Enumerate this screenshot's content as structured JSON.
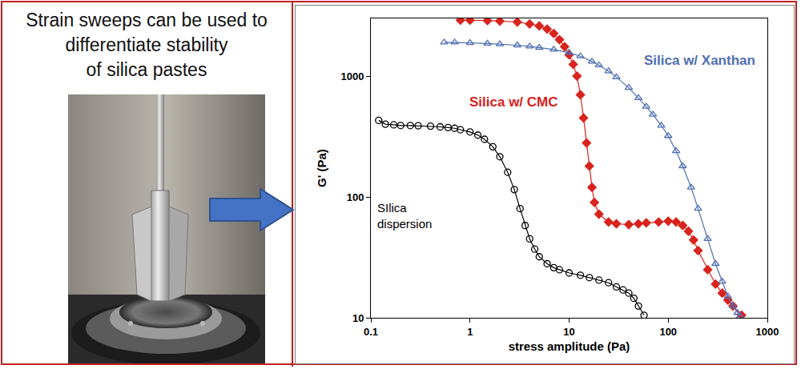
{
  "panel": {
    "caption": [
      "Strain sweeps can be used to",
      "differentiate stability",
      "of silica pastes"
    ]
  },
  "chart_data": {
    "type": "scatter",
    "x_label": "stress amplitude (Pa)",
    "y_label": "G' (Pa)",
    "log": true,
    "grid": false,
    "xlim": [
      0.1,
      1000
    ],
    "ylim": [
      10,
      3000
    ],
    "xticks": [
      0.1,
      1,
      10,
      100,
      1000
    ],
    "yticks": [
      10,
      100,
      1000
    ],
    "series": [
      {
        "name": "SIlica dispersion",
        "color": "#000000",
        "marker": "open circle",
        "x": [
          0.12,
          0.14,
          0.17,
          0.2,
          0.25,
          0.3,
          0.4,
          0.5,
          0.6,
          0.7,
          0.8,
          1.0,
          1.2,
          1.4,
          1.7,
          2.0,
          2.4,
          2.8,
          3.2,
          3.6,
          4.0,
          4.5,
          5,
          6,
          7,
          8,
          10,
          13,
          16,
          20,
          25,
          30,
          35,
          40,
          45,
          50,
          57
        ],
        "values": [
          430,
          400,
          395,
          390,
          390,
          388,
          385,
          380,
          375,
          370,
          360,
          345,
          325,
          300,
          260,
          215,
          160,
          115,
          80,
          58,
          45,
          37,
          32,
          28,
          26,
          25,
          23.5,
          22.5,
          21.5,
          20.5,
          19.5,
          18,
          17,
          16,
          14.5,
          12.5,
          10.5
        ]
      },
      {
        "name": "Silica w/ CMC",
        "color": "#d9231d",
        "marker": "diamond",
        "x": [
          0.8,
          1,
          1.5,
          2,
          3,
          4,
          5,
          6,
          7,
          8,
          9,
          10,
          11,
          12,
          13,
          14,
          15,
          16,
          17,
          18,
          20,
          25,
          30,
          40,
          50,
          60,
          80,
          100,
          120,
          140,
          160,
          180,
          200,
          250,
          300,
          350,
          400,
          450,
          550
        ],
        "values": [
          2900,
          2900,
          2880,
          2850,
          2800,
          2700,
          2600,
          2450,
          2250,
          2000,
          1750,
          1500,
          1250,
          1000,
          700,
          450,
          280,
          180,
          120,
          90,
          72,
          62,
          60,
          59,
          60,
          61,
          62,
          63,
          62,
          58,
          52,
          44,
          36,
          25,
          19,
          16,
          14,
          12.5,
          10.5
        ]
      },
      {
        "name": "Silica w/ Xanthan",
        "color": "#4f6fb3",
        "marker": "open triangle",
        "x": [
          0.55,
          0.7,
          1,
          1.5,
          2,
          3,
          4,
          5,
          7,
          10,
          13,
          17,
          20,
          25,
          30,
          40,
          50,
          60,
          70,
          85,
          100,
          120,
          140,
          170,
          200,
          250,
          300,
          350,
          400,
          450,
          500,
          530
        ],
        "values": [
          1900,
          1900,
          1880,
          1860,
          1840,
          1800,
          1760,
          1720,
          1660,
          1560,
          1460,
          1320,
          1230,
          1100,
          980,
          800,
          660,
          560,
          480,
          390,
          320,
          240,
          180,
          120,
          80,
          45,
          28,
          20,
          15,
          12.5,
          11,
          10.3
        ]
      }
    ]
  }
}
